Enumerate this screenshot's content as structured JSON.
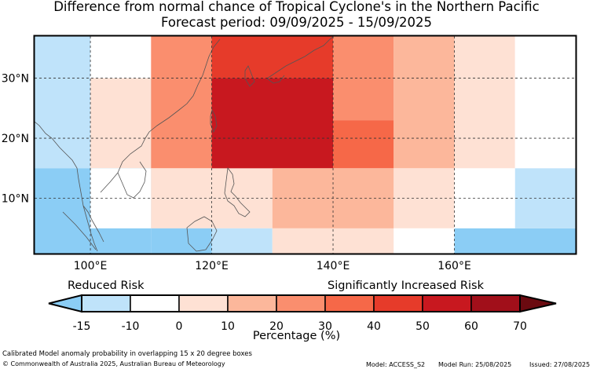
{
  "title_line1": "Difference from normal chance of Tropical Cyclone's in the Northern Pacific",
  "title_line2": "Forecast period: 09/09/2025 - 15/09/2025",
  "map": {
    "lat_labels": [
      "30°N",
      "20°N",
      "10°N"
    ],
    "lon_labels": [
      "100°E",
      "120°E",
      "140°E",
      "160°E"
    ],
    "grid_cells": [
      {
        "lon": [
          90,
          110
        ],
        "lat": [
          15,
          30
        ],
        "value": -10
      },
      {
        "lon": [
          90,
          100
        ],
        "lat": [
          30,
          37
        ],
        "value": -10
      },
      {
        "lon": [
          100,
          110
        ],
        "lat": [
          30,
          37
        ],
        "value": 0
      },
      {
        "lon": [
          100,
          110
        ],
        "lat": [
          15,
          30
        ],
        "value": 10
      },
      {
        "lon": [
          90,
          110
        ],
        "lat": [
          0,
          15
        ],
        "value": -15
      },
      {
        "lon": [
          100,
          110
        ],
        "lat": [
          5,
          15
        ],
        "value": 0
      },
      {
        "lon": [
          110,
          120
        ],
        "lat": [
          15,
          37
        ],
        "value": 35
      },
      {
        "lon": [
          110,
          130
        ],
        "lat": [
          5,
          15
        ],
        "value": 10
      },
      {
        "lon": [
          110,
          120
        ],
        "lat": [
          0,
          5
        ],
        "value": -15
      },
      {
        "lon": [
          120,
          130
        ],
        "lat": [
          0,
          5
        ],
        "value": -10
      },
      {
        "lon": [
          120,
          140
        ],
        "lat": [
          30,
          37
        ],
        "value": 55
      },
      {
        "lon": [
          120,
          140
        ],
        "lat": [
          15,
          30
        ],
        "value": 65
      },
      {
        "lon": [
          130,
          140
        ],
        "lat": [
          5,
          15
        ],
        "value": 20
      },
      {
        "lon": [
          130,
          150
        ],
        "lat": [
          0,
          5
        ],
        "value": 10
      },
      {
        "lon": [
          140,
          150
        ],
        "lat": [
          23,
          37
        ],
        "value": 35
      },
      {
        "lon": [
          140,
          150
        ],
        "lat": [
          15,
          23
        ],
        "value": 45
      },
      {
        "lon": [
          140,
          150
        ],
        "lat": [
          5,
          15
        ],
        "value": 25
      },
      {
        "lon": [
          150,
          160
        ],
        "lat": [
          15,
          37
        ],
        "value": 20
      },
      {
        "lon": [
          150,
          160
        ],
        "lat": [
          5,
          15
        ],
        "value": 10
      },
      {
        "lon": [
          150,
          160
        ],
        "lat": [
          0,
          5
        ],
        "value": 0
      },
      {
        "lon": [
          160,
          170
        ],
        "lat": [
          15,
          37
        ],
        "value": 10
      },
      {
        "lon": [
          160,
          170
        ],
        "lat": [
          5,
          15
        ],
        "value": 0
      },
      {
        "lon": [
          160,
          180
        ],
        "lat": [
          0,
          5
        ],
        "value": -15
      },
      {
        "lon": [
          170,
          180
        ],
        "lat": [
          15,
          37
        ],
        "value": 0
      },
      {
        "lon": [
          170,
          180
        ],
        "lat": [
          5,
          15
        ],
        "value": -10
      }
    ]
  },
  "legend": {
    "reduced_label": "Reduced Risk",
    "increased_label": "Significantly Increased Risk",
    "tick_labels": [
      "-15",
      "-10",
      "0",
      "10",
      "20",
      "30",
      "40",
      "50",
      "60",
      "70"
    ],
    "units": "Percentage (%)",
    "colors": [
      "#8bcdf5",
      "#bfe3fa",
      "#ffffff",
      "#fee1d4",
      "#fcb79b",
      "#fa8e6e",
      "#f66848",
      "#e63b2a",
      "#c8181f",
      "#a10f1a",
      "#6b0a10"
    ]
  },
  "footer": {
    "note": "Calibrated Model anomaly probability in overlapping 15 x 20 degree boxes",
    "copyright": "© Commonwealth of Australia 2025, Australian Bureau of Meteorology",
    "model": "Model: ACCESS_S2",
    "model_run": "Model Run: 25/08/2025",
    "issued": "Issued: 27/08/2025"
  }
}
